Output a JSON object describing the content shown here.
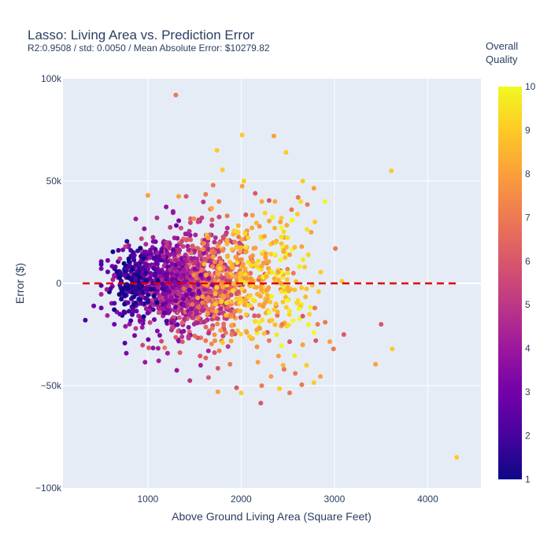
{
  "chart_data": {
    "type": "scatter",
    "title": "Lasso: Living Area vs. Prediction Error",
    "subtitle": "R2:0.9508 / std: 0.0050 / Mean Absolute Error: $10279.82",
    "xlabel": "Above Ground Living Area (Square Feet)",
    "ylabel": "Error ($)",
    "xlim": [
      90,
      4570
    ],
    "ylim": [
      -100000,
      100000
    ],
    "x_ticks": [
      1000,
      2000,
      3000,
      4000
    ],
    "x_tick_labels": [
      "1000",
      "2000",
      "3000",
      "4000"
    ],
    "y_ticks": [
      100000,
      50000,
      0,
      -50000,
      -100000
    ],
    "y_tick_labels": [
      "100k",
      "50k",
      "0",
      "−50k",
      "−100k"
    ],
    "grid": true,
    "background": "#e5ecf6",
    "colorbar": {
      "title_lines": [
        "Overall",
        "Quality"
      ],
      "min": 1,
      "max": 10,
      "ticks": [
        "1",
        "2",
        "3",
        "4",
        "5",
        "6",
        "7",
        "8",
        "9",
        "10"
      ],
      "colors": [
        "#0d0887",
        "#46039f",
        "#7201a8",
        "#9c179e",
        "#bd3786",
        "#d8576b",
        "#ed7953",
        "#fb9f3a",
        "#fdca26",
        "#f0f921"
      ]
    },
    "reference_line": {
      "x": [
        300,
        4320
      ],
      "y": 0,
      "color": "#dd0000",
      "style": "dashed"
    },
    "points": [
      [
        1300,
        92000,
        7
      ],
      [
        2350,
        72000,
        8
      ],
      [
        2010,
        72500,
        9
      ],
      [
        1740,
        65000,
        9
      ],
      [
        2480,
        64000,
        9
      ],
      [
        3610,
        55000,
        9
      ],
      [
        1800,
        55500,
        9
      ],
      [
        2660,
        50000,
        9
      ],
      [
        2030,
        50000,
        9
      ],
      [
        2010,
        47500,
        8
      ],
      [
        2780,
        46500,
        8
      ],
      [
        1330,
        42500,
        8
      ],
      [
        2710,
        38500,
        7
      ],
      [
        3010,
        17000,
        7
      ],
      [
        3080,
        1000,
        9
      ],
      [
        3500,
        -20000,
        6
      ],
      [
        3620,
        -32000,
        9
      ],
      [
        3440,
        -39500,
        8
      ],
      [
        4310,
        -85000,
        9
      ],
      [
        2780,
        -48500,
        9
      ],
      [
        2650,
        -49500,
        7
      ],
      [
        2520,
        -53500,
        7
      ],
      [
        2410,
        -51500,
        9
      ],
      [
        2210,
        -58500,
        6
      ],
      [
        1750,
        -53000,
        8
      ],
      [
        2000,
        -53500,
        9
      ],
      [
        1450,
        -47500,
        5
      ],
      [
        1650,
        -46000,
        6
      ],
      [
        1310,
        -42500,
        4
      ],
      [
        970,
        -38500,
        4
      ],
      [
        330,
        -18000,
        2
      ],
      [
        420,
        -11000,
        3
      ],
      [
        500,
        -12000,
        3
      ],
      [
        560,
        -3000,
        4
      ],
      [
        640,
        4000,
        4
      ],
      [
        700,
        12000,
        5
      ],
      [
        760,
        18000,
        5
      ],
      [
        870,
        31500,
        4
      ],
      [
        1000,
        43000,
        8
      ],
      [
        1700,
        48000,
        7
      ],
      [
        1620,
        43500,
        7
      ],
      [
        1410,
        42500,
        6
      ],
      [
        2300,
        40500,
        6
      ],
      [
        2150,
        44000,
        6
      ],
      [
        2050,
        33500,
        6
      ],
      [
        1850,
        33000,
        7
      ],
      [
        1100,
        15000,
        4
      ],
      [
        1200,
        20000,
        5
      ],
      [
        2950,
        -28500,
        8
      ],
      [
        3100,
        -25000,
        6
      ],
      [
        2990,
        -32000,
        7
      ],
      [
        2850,
        -45500,
        8
      ],
      [
        2700,
        -40000,
        9
      ],
      [
        2580,
        -44000,
        7
      ],
      [
        2320,
        -45500,
        8
      ],
      [
        2460,
        -42000,
        7
      ],
      [
        1950,
        -51000,
        6
      ],
      [
        2220,
        -50000,
        7
      ],
      [
        640,
        -20000,
        3
      ],
      [
        700,
        -15000,
        3
      ],
      [
        760,
        -21000,
        4
      ],
      [
        870,
        -22000,
        5
      ],
      [
        940,
        -21500,
        4
      ],
      [
        1010,
        -31500,
        6
      ],
      [
        1180,
        -31500,
        7
      ],
      [
        1370,
        -28500,
        6
      ],
      [
        1560,
        -35500,
        6
      ],
      [
        1750,
        -41500,
        6
      ],
      [
        1880,
        -39500,
        7
      ],
      [
        2180,
        -38500,
        8
      ],
      [
        2400,
        -35500,
        8
      ],
      [
        2660,
        -30000,
        8
      ],
      [
        2800,
        -28000,
        6
      ],
      [
        2520,
        -28500,
        6
      ],
      [
        2300,
        -28000,
        7
      ],
      [
        2090,
        -26000,
        9
      ],
      [
        1800,
        -29000,
        9
      ],
      [
        1620,
        -28000,
        7
      ],
      [
        2250,
        23000,
        8
      ],
      [
        2420,
        30000,
        8
      ],
      [
        2540,
        36000,
        7
      ],
      [
        2610,
        42000,
        7
      ],
      [
        2750,
        25000,
        8
      ],
      [
        2790,
        30000,
        9
      ],
      [
        2650,
        18000,
        8
      ],
      [
        2520,
        14000,
        8
      ],
      [
        2680,
        8000,
        9
      ],
      [
        2560,
        5000,
        7
      ],
      [
        2830,
        -4000,
        9
      ],
      [
        2790,
        -12000,
        7
      ],
      [
        2660,
        -16000,
        6
      ],
      [
        2820,
        -20000,
        7
      ],
      [
        2900,
        -19000,
        7
      ],
      [
        2440,
        -20000,
        7
      ],
      [
        2330,
        -18000,
        9
      ],
      [
        2200,
        -22000,
        8
      ],
      [
        2060,
        -24000,
        8
      ],
      [
        1900,
        -25000,
        7
      ],
      [
        1780,
        -23000,
        8
      ],
      [
        1690,
        -22000,
        7
      ]
    ],
    "cloud": [
      {
        "cx": 1450,
        "cy": 0,
        "sx": 330,
        "sy": 12500,
        "n": 1050,
        "lo": 3,
        "hi": 9
      },
      {
        "cx": 1200,
        "cy": 2000,
        "sx": 230,
        "sy": 10000,
        "n": 280,
        "lo": 2,
        "hi": 7
      },
      {
        "cx": 850,
        "cy": 0,
        "sx": 110,
        "sy": 7500,
        "n": 150,
        "lo": 1,
        "hi": 6
      },
      {
        "cx": 2050,
        "cy": 3000,
        "sx": 280,
        "sy": 15000,
        "n": 230,
        "lo": 6,
        "hi": 10
      },
      {
        "cx": 2450,
        "cy": 5000,
        "sx": 220,
        "sy": 17000,
        "n": 90,
        "lo": 6,
        "hi": 10
      }
    ]
  }
}
